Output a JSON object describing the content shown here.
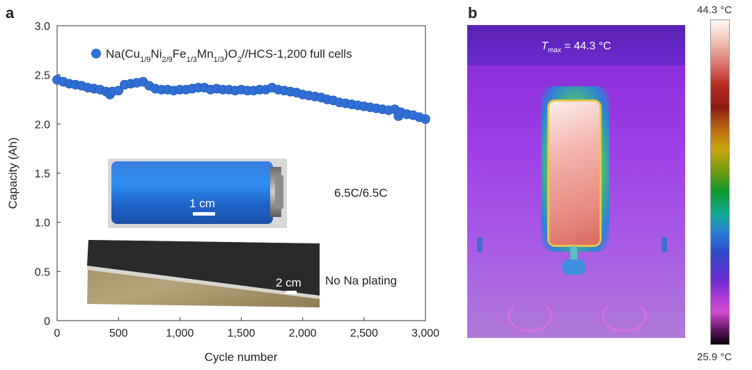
{
  "panel_a": {
    "letter": "a",
    "legend_label_html": "Na(Cu<tspan baseline-shift=\"sub\" font-size=\"11\">1/9</tspan>Ni<tspan baseline-shift=\"sub\" font-size=\"11\">2/9</tspan>Fe<tspan baseline-shift=\"sub\" font-size=\"11\">1/3</tspan>Mn<tspan baseline-shift=\"sub\" font-size=\"11\">1/3</tspan>)O<tspan baseline-shift=\"sub\" font-size=\"11\">2</tspan>//HCS-1,200 full cells",
    "rate_text": "6.5C/6.5C",
    "cell_photo": {
      "scale_label": "1 cm",
      "description": "blue cylindrical cell"
    },
    "electrode_photo": {
      "scale_label": "2 cm",
      "caption": "No Na plating"
    }
  },
  "panel_b": {
    "letter": "b",
    "tmax_label": "T",
    "tmax_sub": "max",
    "tmax_value": " = 44.3 °C",
    "colorbar_max": "44.3 °C",
    "colorbar_min": "25.9 °C"
  },
  "chart_data": {
    "type": "scatter",
    "xlabel": "Cycle number",
    "ylabel": "Capacity (Ah)",
    "xlim": [
      0,
      3000
    ],
    "ylim": [
      0,
      3.0
    ],
    "xticks": [
      0,
      500,
      1000,
      1500,
      2000,
      2500,
      3000
    ],
    "xtick_labels": [
      "0",
      "500",
      "1,000",
      "1,500",
      "2,000",
      "2,500",
      "3,000"
    ],
    "yticks": [
      0,
      0.5,
      1.0,
      1.5,
      2.0,
      2.5,
      3.0
    ],
    "ytick_labels": [
      "0",
      "0.5",
      "1.0",
      "1.5",
      "2.0",
      "2.5",
      "3.0"
    ],
    "series_color": "#2f6fd6",
    "series": [
      {
        "name": "Na(Cu1/9Ni2/9Fe1/3Mn1/3)O2//HCS-1,200 full cells",
        "x": [
          0,
          50,
          100,
          150,
          200,
          250,
          300,
          350,
          400,
          430,
          450,
          500,
          550,
          600,
          650,
          700,
          750,
          800,
          850,
          900,
          950,
          1000,
          1050,
          1100,
          1150,
          1200,
          1250,
          1300,
          1350,
          1400,
          1450,
          1500,
          1550,
          1600,
          1650,
          1700,
          1750,
          1800,
          1850,
          1900,
          1950,
          2000,
          2050,
          2100,
          2150,
          2200,
          2250,
          2300,
          2350,
          2400,
          2450,
          2500,
          2550,
          2600,
          2650,
          2700,
          2750,
          2780,
          2800,
          2850,
          2900,
          2950,
          3000
        ],
        "y": [
          2.45,
          2.43,
          2.41,
          2.4,
          2.39,
          2.37,
          2.36,
          2.35,
          2.33,
          2.3,
          2.33,
          2.34,
          2.4,
          2.41,
          2.42,
          2.43,
          2.39,
          2.36,
          2.35,
          2.35,
          2.34,
          2.35,
          2.35,
          2.36,
          2.37,
          2.37,
          2.35,
          2.36,
          2.35,
          2.35,
          2.34,
          2.35,
          2.34,
          2.34,
          2.35,
          2.35,
          2.37,
          2.35,
          2.34,
          2.33,
          2.32,
          2.3,
          2.29,
          2.28,
          2.27,
          2.25,
          2.24,
          2.22,
          2.21,
          2.2,
          2.19,
          2.18,
          2.17,
          2.16,
          2.15,
          2.14,
          2.15,
          2.08,
          2.12,
          2.1,
          2.09,
          2.07,
          2.05
        ]
      }
    ]
  }
}
